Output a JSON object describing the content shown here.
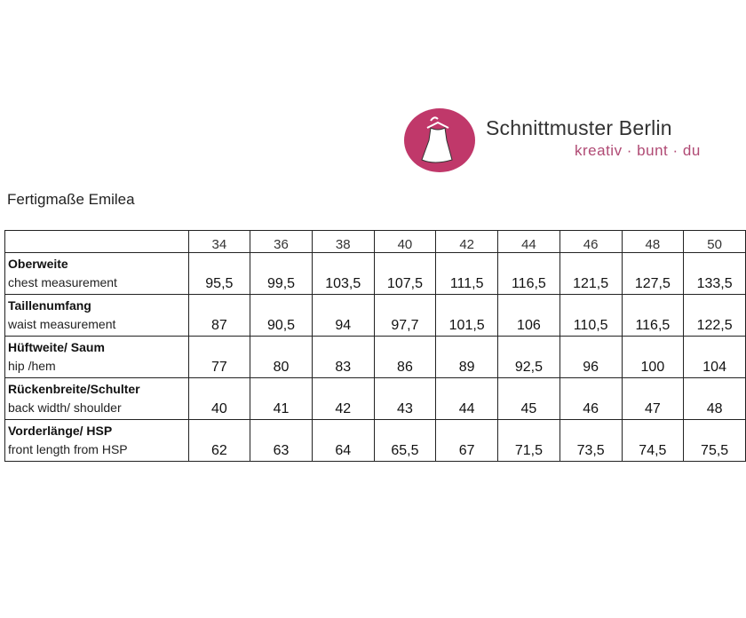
{
  "logo": {
    "brand": "Schnittmuster Berlin",
    "tagline": "kreativ · bunt · du",
    "icon": "dress-on-hanger-icon",
    "color": "#c0386a"
  },
  "title": "Fertigmaße Emilea",
  "table": {
    "sizes": [
      "34",
      "36",
      "38",
      "40",
      "42",
      "44",
      "46",
      "48",
      "50"
    ],
    "rows": [
      {
        "de": "Oberweite",
        "en": "chest measurement",
        "values": [
          "95,5",
          "99,5",
          "103,5",
          "107,5",
          "111,5",
          "116,5",
          "121,5",
          "127,5",
          "133,5"
        ]
      },
      {
        "de": "Taillenumfang",
        "en": "waist measurement",
        "values": [
          "87",
          "90,5",
          "94",
          "97,7",
          "101,5",
          "106",
          "110,5",
          "116,5",
          "122,5"
        ]
      },
      {
        "de": "Hüftweite/ Saum",
        "en": "hip /hem",
        "values": [
          "77",
          "80",
          "83",
          "86",
          "89",
          "92,5",
          "96",
          "100",
          "104"
        ]
      },
      {
        "de": "Rückenbreite/Schulter",
        "en": "back width/ shoulder",
        "values": [
          "40",
          "41",
          "42",
          "43",
          "44",
          "45",
          "46",
          "47",
          "48"
        ]
      },
      {
        "de": "Vorderlänge/ HSP",
        "en": "front length from HSP",
        "values": [
          "62",
          "63",
          "64",
          "65,5",
          "67",
          "71,5",
          "73,5",
          "74,5",
          "75,5"
        ]
      }
    ]
  }
}
